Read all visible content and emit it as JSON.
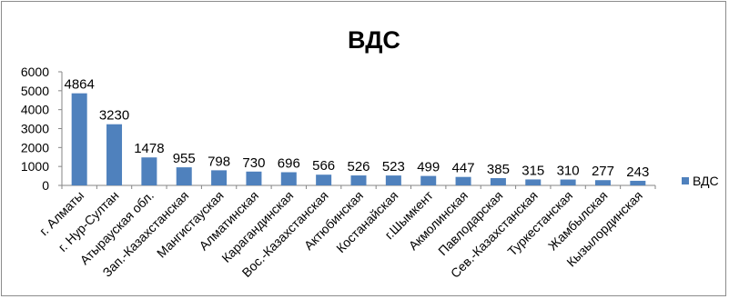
{
  "chart_data": {
    "type": "bar",
    "title": "ВДС",
    "categories": [
      "г. Алматы",
      "г. Нур-Султан",
      "Атырауская обл.",
      "Зап.-Казахстанская",
      "Мангистауская",
      "Алматинская",
      "Карагандинская",
      "Вос.-Казахстанская",
      "Актюбинская",
      "Костанайская",
      "г.Шымкент",
      "Акмолинская",
      "Павлодарская",
      "Сев.-Казахстанская",
      "Туркестанская",
      "Жамбылская",
      "Кызылординская"
    ],
    "series": [
      {
        "name": "ВДС",
        "values": [
          4864,
          3230,
          1478,
          955,
          798,
          730,
          696,
          566,
          526,
          523,
          499,
          447,
          385,
          315,
          310,
          277,
          243
        ],
        "color": "#4f81bd"
      }
    ],
    "ylim": [
      0,
      6000
    ],
    "yticks": [
      0,
      1000,
      2000,
      3000,
      4000,
      5000,
      6000
    ],
    "grid": false,
    "legend": "right"
  }
}
